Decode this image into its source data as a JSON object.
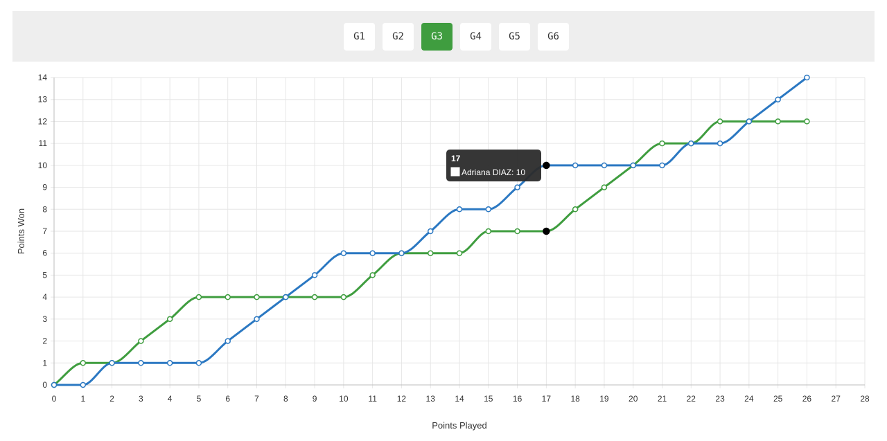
{
  "tabs": [
    {
      "label": "G1",
      "active": false
    },
    {
      "label": "G2",
      "active": false
    },
    {
      "label": "G3",
      "active": true
    },
    {
      "label": "G4",
      "active": false
    },
    {
      "label": "G5",
      "active": false
    },
    {
      "label": "G6",
      "active": false
    }
  ],
  "colors": {
    "series_a": "#2b78c2",
    "series_b": "#3f9d3f",
    "tab_active": "#3f9d3f",
    "tooltip_bg": "#2b2b2b"
  },
  "chart_data": {
    "type": "line",
    "xlabel": "Points Played",
    "ylabel": "Points Won",
    "xlim": [
      0,
      28
    ],
    "ylim": [
      0,
      14
    ],
    "grid": true,
    "x": [
      0,
      1,
      2,
      3,
      4,
      5,
      6,
      7,
      8,
      9,
      10,
      11,
      12,
      13,
      14,
      15,
      16,
      17,
      18,
      19,
      20,
      21,
      22,
      23,
      24,
      25,
      26
    ],
    "series": [
      {
        "name": "Adriana DIAZ",
        "values": [
          0,
          0,
          1,
          1,
          1,
          1,
          2,
          3,
          4,
          5,
          6,
          6,
          6,
          7,
          8,
          8,
          9,
          10,
          10,
          10,
          10,
          10,
          11,
          11,
          12,
          13,
          14
        ]
      },
      {
        "values": [
          0,
          1,
          1,
          2,
          3,
          4,
          4,
          4,
          4,
          4,
          4,
          5,
          6,
          6,
          6,
          7,
          7,
          7,
          8,
          9,
          10,
          11,
          11,
          12,
          12,
          12,
          12
        ]
      }
    ],
    "tooltip": {
      "title": "17",
      "label": "Adriana DIAZ: 10",
      "x": 17
    }
  }
}
